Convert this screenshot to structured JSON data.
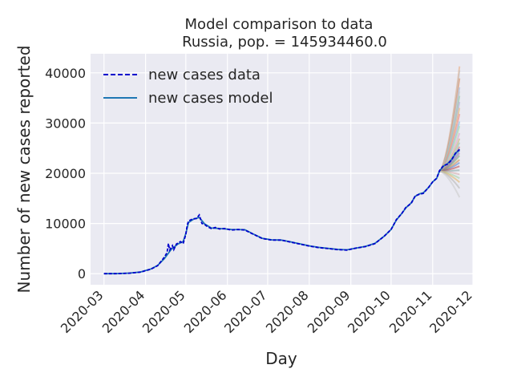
{
  "chart_data": {
    "type": "line",
    "title": "Model comparison to data",
    "subtitle": "Russia, pop. = 145934460.0",
    "xlabel": "Day",
    "ylabel": "Number of new cases reported",
    "x_ticks": [
      "2020-03",
      "2020-04",
      "2020-05",
      "2020-06",
      "2020-07",
      "2020-08",
      "2020-09",
      "2020-10",
      "2020-11",
      "2020-12"
    ],
    "y_ticks": [
      0,
      10000,
      20000,
      30000,
      40000
    ],
    "xlim": [
      "2020-02-20",
      "2020-12-01"
    ],
    "ylim": [
      -2200,
      43800
    ],
    "grid": true,
    "legend_position": "top-left",
    "legend": [
      {
        "label": "new cases data",
        "style": "dashed",
        "color": "#0000cc"
      },
      {
        "label": "new cases model",
        "style": "solid",
        "color": "#1f77b4"
      }
    ],
    "series": [
      {
        "name": "new cases data",
        "color": "#0000cc",
        "points": [
          [
            "2020-03-01",
            0
          ],
          [
            "2020-03-10",
            10
          ],
          [
            "2020-03-20",
            100
          ],
          [
            "2020-03-28",
            300
          ],
          [
            "2020-04-01",
            600
          ],
          [
            "2020-04-05",
            900
          ],
          [
            "2020-04-10",
            1600
          ],
          [
            "2020-04-15",
            3300
          ],
          [
            "2020-04-17",
            4200
          ],
          [
            "2020-04-18",
            6000
          ],
          [
            "2020-04-19",
            4700
          ],
          [
            "2020-04-21",
            5600
          ],
          [
            "2020-04-22",
            4800
          ],
          [
            "2020-04-24",
            5900
          ],
          [
            "2020-04-27",
            6400
          ],
          [
            "2020-04-29",
            6000
          ],
          [
            "2020-05-01",
            7800
          ],
          [
            "2020-05-02",
            9600
          ],
          [
            "2020-05-03",
            10500
          ],
          [
            "2020-05-06",
            10900
          ],
          [
            "2020-05-09",
            11000
          ],
          [
            "2020-05-11",
            11700
          ],
          [
            "2020-05-13",
            10000
          ],
          [
            "2020-05-15",
            9800
          ],
          [
            "2020-05-17",
            9400
          ],
          [
            "2020-05-20",
            9000
          ],
          [
            "2020-05-23",
            9200
          ],
          [
            "2020-05-26",
            8900
          ],
          [
            "2020-05-30",
            9000
          ],
          [
            "2020-06-04",
            8700
          ],
          [
            "2020-06-09",
            8800
          ],
          [
            "2020-06-14",
            8700
          ],
          [
            "2020-06-20",
            7900
          ],
          [
            "2020-06-27",
            7000
          ],
          [
            "2020-07-04",
            6700
          ],
          [
            "2020-07-11",
            6700
          ],
          [
            "2020-07-18",
            6300
          ],
          [
            "2020-07-25",
            5900
          ],
          [
            "2020-08-01",
            5500
          ],
          [
            "2020-08-08",
            5200
          ],
          [
            "2020-08-15",
            5000
          ],
          [
            "2020-08-22",
            4800
          ],
          [
            "2020-08-29",
            4700
          ],
          [
            "2020-09-05",
            5100
          ],
          [
            "2020-09-12",
            5400
          ],
          [
            "2020-09-19",
            6000
          ],
          [
            "2020-09-26",
            7500
          ],
          [
            "2020-10-01",
            8800
          ],
          [
            "2020-10-05",
            10800
          ],
          [
            "2020-10-09",
            12000
          ],
          [
            "2020-10-12",
            13200
          ],
          [
            "2020-10-16",
            14000
          ],
          [
            "2020-10-19",
            15500
          ],
          [
            "2020-10-22",
            15800
          ],
          [
            "2020-10-25",
            16000
          ],
          [
            "2020-10-29",
            17200
          ],
          [
            "2020-11-01",
            18300
          ],
          [
            "2020-11-04",
            19000
          ],
          [
            "2020-11-06",
            20500
          ],
          [
            "2020-11-09",
            21500
          ],
          [
            "2020-11-12",
            21800
          ],
          [
            "2020-11-15",
            22600
          ],
          [
            "2020-11-18",
            24000
          ],
          [
            "2020-11-21",
            24700
          ]
        ]
      },
      {
        "name": "new cases model",
        "color": "#1f77b4",
        "points": [
          [
            "2020-03-01",
            0
          ],
          [
            "2020-03-10",
            15
          ],
          [
            "2020-03-20",
            110
          ],
          [
            "2020-03-28",
            320
          ],
          [
            "2020-04-01",
            620
          ],
          [
            "2020-04-05",
            950
          ],
          [
            "2020-04-10",
            1650
          ],
          [
            "2020-04-15",
            3000
          ],
          [
            "2020-04-20",
            4800
          ],
          [
            "2020-04-25",
            5900
          ],
          [
            "2020-04-29",
            6400
          ],
          [
            "2020-05-01",
            8000
          ],
          [
            "2020-05-03",
            10200
          ],
          [
            "2020-05-07",
            10900
          ],
          [
            "2020-05-11",
            11200
          ],
          [
            "2020-05-15",
            9900
          ],
          [
            "2020-05-20",
            9100
          ],
          [
            "2020-05-26",
            9000
          ],
          [
            "2020-06-04",
            8800
          ],
          [
            "2020-06-14",
            8750
          ],
          [
            "2020-06-20",
            7950
          ],
          [
            "2020-06-27",
            7050
          ],
          [
            "2020-07-04",
            6750
          ],
          [
            "2020-07-11",
            6700
          ],
          [
            "2020-07-18",
            6350
          ],
          [
            "2020-07-25",
            5950
          ],
          [
            "2020-08-01",
            5550
          ],
          [
            "2020-08-08",
            5250
          ],
          [
            "2020-08-15",
            5050
          ],
          [
            "2020-08-22",
            4850
          ],
          [
            "2020-08-29",
            4750
          ],
          [
            "2020-09-05",
            5100
          ],
          [
            "2020-09-12",
            5450
          ],
          [
            "2020-09-19",
            6050
          ],
          [
            "2020-09-26",
            7500
          ],
          [
            "2020-10-01",
            8800
          ],
          [
            "2020-10-05",
            10700
          ],
          [
            "2020-10-09",
            12000
          ],
          [
            "2020-10-12",
            13100
          ],
          [
            "2020-10-16",
            14100
          ],
          [
            "2020-10-19",
            15400
          ],
          [
            "2020-10-22",
            15900
          ],
          [
            "2020-10-25",
            16100
          ],
          [
            "2020-10-29",
            17200
          ],
          [
            "2020-11-01",
            18300
          ],
          [
            "2020-11-04",
            19000
          ],
          [
            "2020-11-06",
            20400
          ],
          [
            "2020-11-09",
            21400
          ],
          [
            "2020-11-12",
            21900
          ],
          [
            "2020-11-15",
            22700
          ],
          [
            "2020-11-18",
            23900
          ],
          [
            "2020-11-21",
            24800
          ]
        ]
      }
    ],
    "ensemble": {
      "start": "2020-11-06",
      "start_value": 20400,
      "end": "2020-11-21",
      "end_values": [
        41300,
        40500,
        38900,
        37100,
        36300,
        35400,
        34200,
        33000,
        31800,
        30300,
        29400,
        28000,
        26900,
        26100,
        25300,
        24500,
        24000,
        23500,
        22700,
        22100,
        21400,
        20600,
        19800,
        19000,
        18200,
        17000,
        15200
      ],
      "colors": [
        "#e8a87c",
        "#c0c0c0",
        "#d98c5f",
        "#9fb8d9",
        "#c9c9c9",
        "#8fc9a8",
        "#b0a6d6",
        "#e5b86a",
        "#f08080",
        "#7cb8e0",
        "#a8d8a0",
        "#d9a0c9",
        "#c8b070",
        "#90c0b0",
        "#e07070",
        "#6090c0",
        "#b070b0",
        "#70b070",
        "#d08040",
        "#5080d0",
        "#c04040",
        "#80a0a0",
        "#d0a0a0",
        "#a0d0a0",
        "#e0b060",
        "#b0b0b0",
        "#c8c8c8"
      ]
    }
  }
}
